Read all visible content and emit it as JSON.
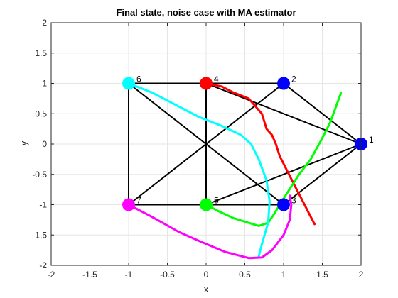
{
  "chart_data": {
    "type": "scatter",
    "title": "Final state, noise case with MA estimator",
    "xlabel": "x",
    "ylabel": "y",
    "xlim": [
      -2,
      2
    ],
    "ylim": [
      -2,
      2
    ],
    "xticks": [
      -2,
      -1.5,
      -1,
      -0.5,
      0,
      0.5,
      1,
      1.5,
      2
    ],
    "yticks": [
      -2,
      -1.5,
      -1,
      -0.5,
      0,
      0.5,
      1,
      1.5,
      2
    ],
    "xtick_labels": [
      "-2",
      "-1.5",
      "-1",
      "-0.5",
      "0",
      "0.5",
      "1",
      "1.5",
      "2"
    ],
    "ytick_labels": [
      "-2",
      "-1.5",
      "-1",
      "-0.5",
      "0",
      "0.5",
      "1",
      "1.5",
      "2"
    ],
    "grid": true,
    "nodes": [
      {
        "label": "1",
        "x": 2,
        "y": 0,
        "color": "#0000ff"
      },
      {
        "label": "2",
        "x": 1,
        "y": 1,
        "color": "#0000ff"
      },
      {
        "label": "3",
        "x": 1,
        "y": -1,
        "color": "#0000ff"
      },
      {
        "label": "4",
        "x": 0,
        "y": 1,
        "color": "#ff0000"
      },
      {
        "label": "5",
        "x": 0,
        "y": -1,
        "color": "#00ff00"
      },
      {
        "label": "6",
        "x": -1,
        "y": 1,
        "color": "#00ffff"
      },
      {
        "label": "7",
        "x": -1,
        "y": -1,
        "color": "#ff00ff"
      }
    ],
    "edges": [
      [
        "6",
        "2"
      ],
      [
        "6",
        "7"
      ],
      [
        "6",
        "3"
      ],
      [
        "4",
        "5"
      ],
      [
        "4",
        "1"
      ],
      [
        "2",
        "7"
      ],
      [
        "7",
        "3"
      ],
      [
        "5",
        "1"
      ],
      [
        "2",
        "1"
      ],
      [
        "3",
        "1"
      ]
    ],
    "trajectories": [
      {
        "node": "4",
        "color": "#ff0000",
        "points": [
          [
            0,
            1
          ],
          [
            0.2,
            0.95
          ],
          [
            0.35,
            0.85
          ],
          [
            0.55,
            0.75
          ],
          [
            0.72,
            0.5
          ],
          [
            0.78,
            0.25
          ],
          [
            0.85,
            0.15
          ],
          [
            0.9,
            0
          ],
          [
            0.95,
            -0.2
          ],
          [
            1.05,
            -0.45
          ],
          [
            1.15,
            -0.7
          ],
          [
            1.25,
            -0.95
          ],
          [
            1.33,
            -1.15
          ],
          [
            1.4,
            -1.32
          ]
        ]
      },
      {
        "node": "5",
        "color": "#00ff00",
        "points": [
          [
            0,
            -1
          ],
          [
            0.15,
            -1.1
          ],
          [
            0.35,
            -1.22
          ],
          [
            0.55,
            -1.3
          ],
          [
            0.68,
            -1.35
          ],
          [
            0.8,
            -1.3
          ],
          [
            0.88,
            -1.15
          ],
          [
            0.95,
            -1.0
          ],
          [
            1.05,
            -0.8
          ],
          [
            1.2,
            -0.5
          ],
          [
            1.35,
            -0.25
          ],
          [
            1.48,
            0.05
          ],
          [
            1.6,
            0.35
          ],
          [
            1.74,
            0.84
          ]
        ]
      },
      {
        "node": "6",
        "color": "#00ffff",
        "points": [
          [
            -1,
            1
          ],
          [
            -0.7,
            0.85
          ],
          [
            -0.4,
            0.65
          ],
          [
            -0.1,
            0.45
          ],
          [
            0.2,
            0.3
          ],
          [
            0.45,
            0.15
          ],
          [
            0.58,
            0
          ],
          [
            0.68,
            -0.25
          ],
          [
            0.78,
            -0.6
          ],
          [
            0.82,
            -0.95
          ],
          [
            0.8,
            -1.3
          ],
          [
            0.72,
            -1.65
          ],
          [
            0.68,
            -1.85
          ]
        ]
      },
      {
        "node": "7",
        "color": "#ff00ff",
        "points": [
          [
            -1,
            -1
          ],
          [
            -0.7,
            -1.2
          ],
          [
            -0.35,
            -1.45
          ],
          [
            -0.05,
            -1.62
          ],
          [
            0.25,
            -1.78
          ],
          [
            0.55,
            -1.88
          ],
          [
            0.72,
            -1.87
          ],
          [
            0.85,
            -1.75
          ],
          [
            1.0,
            -1.5
          ],
          [
            1.08,
            -1.25
          ],
          [
            1.1,
            -1.0
          ],
          [
            1.08,
            -0.85
          ]
        ]
      }
    ]
  }
}
